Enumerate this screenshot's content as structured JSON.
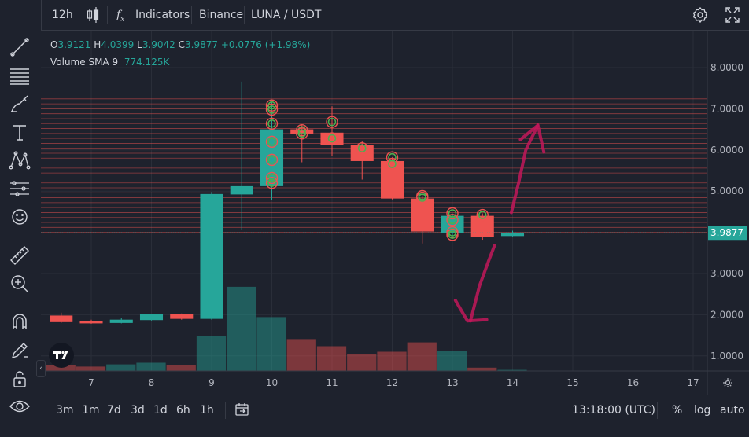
{
  "toolbar": {
    "interval": "12h",
    "indicators_label": "Indicators",
    "exchange": "Binance",
    "symbol": "LUNA / USDT"
  },
  "legend": {
    "o_label": "O",
    "o_value": "3.9121",
    "h_label": "H",
    "h_value": "4.0399",
    "l_label": "L",
    "l_value": "3.9042",
    "c_label": "C",
    "c_value": "3.9877",
    "change": "+0.0776 (+1.98%)",
    "volume_label": "Volume SMA 9",
    "volume_value": "774.125K"
  },
  "bottom": {
    "ranges": [
      "3m",
      "1m",
      "7d",
      "3d",
      "1d",
      "6h",
      "1h"
    ],
    "time": "13:18:00 (UTC)",
    "percent": "%",
    "log": "log",
    "auto": "auto"
  },
  "chart_data": {
    "type": "candlestick",
    "x_ticks": [
      "7",
      "8",
      "9",
      "10",
      "11",
      "12",
      "13",
      "14",
      "15",
      "16",
      "17"
    ],
    "y_ticks": [
      "8.0000",
      "7.0000",
      "6.0000",
      "5.0000",
      "3.0000",
      "2.0000",
      "1.0000"
    ],
    "y_range": [
      0.6,
      8.4
    ],
    "last_price_label": "3.9877",
    "last_price": 3.9877,
    "colors": {
      "up": "#26a69a",
      "down": "#ef5350",
      "background": "#1e222d",
      "grid": "#2a2e39",
      "annotation": "#c2185b"
    },
    "candles": [
      {
        "x": 6.5,
        "o": 1.98,
        "h": 2.05,
        "l": 1.8,
        "c": 1.82
      },
      {
        "x": 7.0,
        "o": 1.84,
        "h": 1.88,
        "l": 1.78,
        "c": 1.79
      },
      {
        "x": 7.5,
        "o": 1.8,
        "h": 1.93,
        "l": 1.79,
        "c": 1.88
      },
      {
        "x": 8.0,
        "o": 1.87,
        "h": 2.02,
        "l": 1.86,
        "c": 2.02
      },
      {
        "x": 8.5,
        "o": 2.01,
        "h": 2.03,
        "l": 1.88,
        "c": 1.9
      },
      {
        "x": 9.0,
        "o": 1.9,
        "h": 4.98,
        "l": 1.88,
        "c": 4.93
      },
      {
        "x": 9.5,
        "o": 4.92,
        "h": 7.66,
        "l": 4.05,
        "c": 5.12
      },
      {
        "x": 10.0,
        "o": 5.12,
        "h": 7.15,
        "l": 4.78,
        "c": 6.5
      },
      {
        "x": 10.5,
        "o": 6.5,
        "h": 6.62,
        "l": 5.7,
        "c": 6.38
      },
      {
        "x": 11.0,
        "o": 6.42,
        "h": 7.06,
        "l": 5.85,
        "c": 6.12
      },
      {
        "x": 11.5,
        "o": 6.12,
        "h": 6.22,
        "l": 5.28,
        "c": 5.73
      },
      {
        "x": 12.0,
        "o": 5.73,
        "h": 5.82,
        "l": 4.8,
        "c": 4.82
      },
      {
        "x": 12.5,
        "o": 4.82,
        "h": 4.9,
        "l": 3.73,
        "c": 4.02
      },
      {
        "x": 13.0,
        "o": 3.98,
        "h": 4.46,
        "l": 3.85,
        "c": 4.4
      },
      {
        "x": 13.5,
        "o": 4.4,
        "h": 4.46,
        "l": 3.82,
        "c": 3.88
      },
      {
        "x": 14.0,
        "o": 3.91,
        "h": 4.04,
        "l": 3.9,
        "c": 3.99
      }
    ],
    "volume_bars": [
      {
        "x": 6.5,
        "v": 0.11,
        "up": false
      },
      {
        "x": 7.0,
        "v": 0.08,
        "up": false
      },
      {
        "x": 7.5,
        "v": 0.12,
        "up": true
      },
      {
        "x": 8.0,
        "v": 0.15,
        "up": true
      },
      {
        "x": 8.5,
        "v": 0.11,
        "up": false
      },
      {
        "x": 9.0,
        "v": 0.63,
        "up": true
      },
      {
        "x": 9.5,
        "v": 1.53,
        "up": true
      },
      {
        "x": 10.0,
        "v": 0.98,
        "up": true
      },
      {
        "x": 10.5,
        "v": 0.58,
        "up": false
      },
      {
        "x": 11.0,
        "v": 0.45,
        "up": false
      },
      {
        "x": 11.5,
        "v": 0.31,
        "up": false
      },
      {
        "x": 12.0,
        "v": 0.35,
        "up": false
      },
      {
        "x": 12.5,
        "v": 0.52,
        "up": false
      },
      {
        "x": 13.0,
        "v": 0.37,
        "up": true
      },
      {
        "x": 13.5,
        "v": 0.06,
        "up": false
      },
      {
        "x": 14.0,
        "v": 0.02,
        "up": true
      }
    ],
    "horizontal_levels": [
      4.0,
      4.12,
      4.24,
      4.36,
      4.48,
      4.6,
      4.72,
      4.84,
      4.96,
      5.08,
      5.2,
      5.32,
      5.44,
      5.56,
      5.68,
      5.8,
      5.92,
      6.04,
      6.16,
      6.28,
      6.4,
      6.52,
      6.64,
      6.76,
      6.88,
      7.0,
      7.12,
      7.24
    ],
    "markers": [
      {
        "x": 10.0,
        "y": 7.08
      },
      {
        "x": 10.0,
        "y": 6.98
      },
      {
        "x": 10.0,
        "y": 6.64
      },
      {
        "x": 10.0,
        "y": 6.2
      },
      {
        "x": 10.0,
        "y": 5.76
      },
      {
        "x": 10.0,
        "y": 5.32
      },
      {
        "x": 10.0,
        "y": 5.2
      },
      {
        "x": 10.5,
        "y": 6.48
      },
      {
        "x": 10.5,
        "y": 6.4
      },
      {
        "x": 11.0,
        "y": 6.68
      },
      {
        "x": 11.0,
        "y": 6.28
      },
      {
        "x": 11.5,
        "y": 6.04
      },
      {
        "x": 12.0,
        "y": 5.82
      },
      {
        "x": 12.0,
        "y": 5.66
      },
      {
        "x": 12.5,
        "y": 4.88
      },
      {
        "x": 12.5,
        "y": 4.84
      },
      {
        "x": 13.0,
        "y": 4.46
      },
      {
        "x": 13.0,
        "y": 4.3
      },
      {
        "x": 13.0,
        "y": 4.0
      },
      {
        "x": 13.0,
        "y": 3.94
      },
      {
        "x": 13.5,
        "y": 4.42
      }
    ],
    "annotations": [
      {
        "type": "arrow-down",
        "points": [
          [
            13.7,
            3.68
          ],
          [
            13.6,
            3.3
          ],
          [
            13.45,
            2.7
          ],
          [
            13.3,
            1.85
          ]
        ],
        "head": [
          [
            13.05,
            2.35
          ],
          [
            13.25,
            1.85
          ],
          [
            13.57,
            1.88
          ]
        ]
      },
      {
        "type": "arrow-up",
        "points": [
          [
            13.98,
            4.48
          ],
          [
            14.1,
            5.2
          ],
          [
            14.22,
            6.0
          ],
          [
            14.42,
            6.6
          ]
        ],
        "head": [
          [
            14.13,
            6.25
          ],
          [
            14.42,
            6.6
          ],
          [
            14.52,
            5.95
          ]
        ]
      }
    ]
  }
}
